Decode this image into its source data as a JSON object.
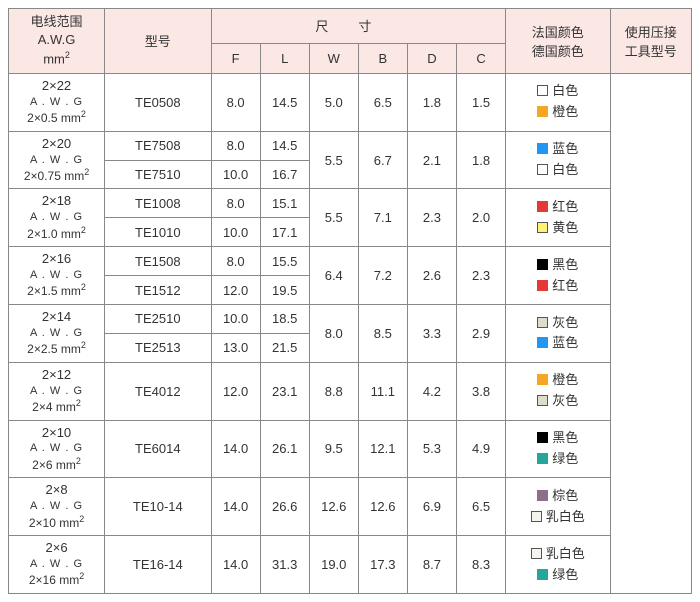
{
  "headers": {
    "wire": "电线范围",
    "wire_sub1": "A.W.G",
    "wire_sub2": "mm",
    "model": "型号",
    "dims": "尺寸",
    "F": "F",
    "L": "L",
    "W": "W",
    "B": "B",
    "D": "D",
    "C": "C",
    "color": "法国颜色",
    "color2": "德国颜色",
    "tool": "使用压接",
    "tool2": "工具型号"
  },
  "colors": {
    "white": "#ffffff",
    "orange": "#f5a623",
    "blue": "#2196f3",
    "red": "#e53935",
    "yellow": "#fff176",
    "black": "#000000",
    "grey": "#e0dccb",
    "green": "#26a69a",
    "brown": "#8b6f8b",
    "milk": "#f5f5f0"
  },
  "colorNames": {
    "white": "白色",
    "orange": "橙色",
    "blue": "蓝色",
    "red": "红色",
    "yellow": "黄色",
    "black": "黑色",
    "grey": "灰色",
    "green": "绿色",
    "brown": "棕色",
    "milk": "乳白色"
  },
  "rows": [
    {
      "wire": {
        "top": "2×22",
        "mid": "A . W . G",
        "mm": "2×0.5"
      },
      "models": [
        "TE0508"
      ],
      "dims": [
        [
          "8.0",
          "14.5",
          "5.0",
          "6.5",
          "1.8",
          "1.5"
        ]
      ],
      "colors": [
        "white",
        "orange"
      ]
    },
    {
      "wire": {
        "top": "2×20",
        "mid": "A . W . G",
        "mm": "2×0.75"
      },
      "models": [
        "TE7508",
        "TE7510"
      ],
      "dims": [
        [
          "8.0",
          "14.5"
        ],
        [
          "10.0",
          "16.7"
        ]
      ],
      "merged": [
        "5.5",
        "6.7",
        "2.1",
        "1.8"
      ],
      "colors": [
        "blue",
        "white"
      ]
    },
    {
      "wire": {
        "top": "2×18",
        "mid": "A . W . G",
        "mm": "2×1.0"
      },
      "models": [
        "TE1008",
        "TE1010"
      ],
      "dims": [
        [
          "8.0",
          "15.1"
        ],
        [
          "10.0",
          "17.1"
        ]
      ],
      "merged": [
        "5.5",
        "7.1",
        "2.3",
        "2.0"
      ],
      "colors": [
        "red",
        "yellow"
      ]
    },
    {
      "wire": {
        "top": "2×16",
        "mid": "A . W . G",
        "mm": "2×1.5"
      },
      "models": [
        "TE1508",
        "TE1512"
      ],
      "dims": [
        [
          "8.0",
          "15.5"
        ],
        [
          "12.0",
          "19.5"
        ]
      ],
      "merged": [
        "6.4",
        "7.2",
        "2.6",
        "2.3"
      ],
      "colors": [
        "black",
        "red"
      ]
    },
    {
      "wire": {
        "top": "2×14",
        "mid": "A . W . G",
        "mm": "2×2.5"
      },
      "models": [
        "TE2510",
        "TE2513"
      ],
      "dims": [
        [
          "10.0",
          "18.5"
        ],
        [
          "13.0",
          "21.5"
        ]
      ],
      "merged": [
        "8.0",
        "8.5",
        "3.3",
        "2.9"
      ],
      "colors": [
        "grey",
        "blue"
      ]
    },
    {
      "wire": {
        "top": "2×12",
        "mid": "A . W . G",
        "mm": "2×4"
      },
      "models": [
        "TE4012"
      ],
      "dims": [
        [
          "12.0",
          "23.1",
          "8.8",
          "11.1",
          "4.2",
          "3.8"
        ]
      ],
      "colors": [
        "orange",
        "grey"
      ]
    },
    {
      "wire": {
        "top": "2×10",
        "mid": "A . W . G",
        "mm": "2×6"
      },
      "models": [
        "TE6014"
      ],
      "dims": [
        [
          "14.0",
          "26.1",
          "9.5",
          "12.1",
          "5.3",
          "4.9"
        ]
      ],
      "colors": [
        "black",
        "green"
      ]
    },
    {
      "wire": {
        "top": "2×8",
        "mid": "A . W . G",
        "mm": "2×10"
      },
      "models": [
        "TE10-14"
      ],
      "dims": [
        [
          "14.0",
          "26.6",
          "12.6",
          "12.6",
          "6.9",
          "6.5"
        ]
      ],
      "colors": [
        "brown",
        "milk"
      ]
    },
    {
      "wire": {
        "top": "2×6",
        "mid": "A . W . G",
        "mm": "2×16"
      },
      "models": [
        "TE16-14"
      ],
      "dims": [
        [
          "14.0",
          "31.3",
          "19.0",
          "17.3",
          "8.7",
          "8.3"
        ]
      ],
      "colors": [
        "milk",
        "green"
      ]
    }
  ],
  "totalModelRows": 13
}
